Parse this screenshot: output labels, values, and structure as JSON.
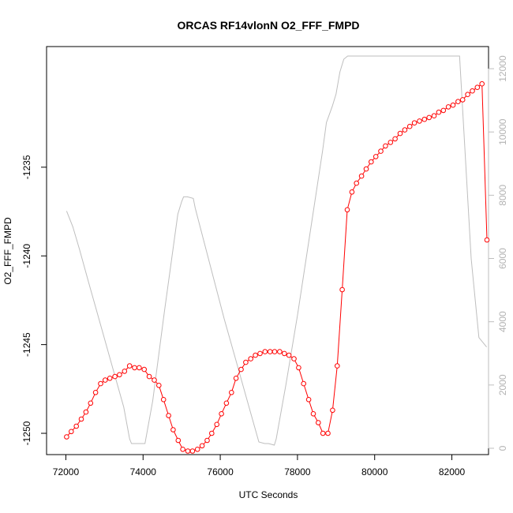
{
  "chart_data": {
    "type": "line",
    "title": "ORCAS RF14vlonN O2_FFF_FMPD",
    "xlabel": "UTC Seconds",
    "ylabel": "O2_FFF_FMPD",
    "xlim": [
      71500,
      82950
    ],
    "ylim": [
      -1251.2,
      -1228.2
    ],
    "y2lim": [
      -200,
      12700
    ],
    "x_ticks": [
      72000,
      74000,
      76000,
      78000,
      80000,
      82000
    ],
    "y_ticks": [
      -1235,
      -1240,
      -1245,
      -1250
    ],
    "y2_ticks": [
      0,
      2000,
      4000,
      6000,
      8000,
      10000,
      12000
    ],
    "grid": false,
    "colors": {
      "primary": "#ff0000",
      "secondary": "#bebebe",
      "frame": "#000000"
    },
    "series": [
      {
        "axis": "left",
        "style": "line+points",
        "color": "#ff0000",
        "x": [
          72020,
          72140,
          72270,
          72400,
          72520,
          72640,
          72770,
          72900,
          73020,
          73140,
          73270,
          73390,
          73520,
          73650,
          73780,
          73900,
          74030,
          74160,
          74290,
          74410,
          74530,
          74660,
          74780,
          74910,
          75030,
          75160,
          75280,
          75410,
          75530,
          75660,
          75780,
          75910,
          76030,
          76160,
          76290,
          76410,
          76540,
          76660,
          76790,
          76910,
          77030,
          77160,
          77290,
          77410,
          77540,
          77660,
          77780,
          77910,
          78030,
          78160,
          78290,
          78410,
          78540,
          78660,
          78790,
          78910,
          79030,
          79160,
          79290,
          79410,
          79530,
          79660,
          79780,
          79910,
          80030,
          80160,
          80280,
          80410,
          80530,
          80660,
          80780,
          80910,
          81030,
          81160,
          81290,
          81410,
          81540,
          81660,
          81780,
          81910,
          82030,
          82160,
          82280,
          82410,
          82530,
          82660,
          82780,
          82910
        ],
        "values": [
          -1250.2,
          -1249.9,
          -1249.6,
          -1249.2,
          -1248.8,
          -1248.3,
          -1247.7,
          -1247.2,
          -1247.0,
          -1246.9,
          -1246.8,
          -1246.7,
          -1246.5,
          -1246.2,
          -1246.3,
          -1246.3,
          -1246.4,
          -1246.8,
          -1247.0,
          -1247.3,
          -1248.1,
          -1249.0,
          -1249.8,
          -1250.4,
          -1250.9,
          -1251.0,
          -1251.0,
          -1250.9,
          -1250.7,
          -1250.4,
          -1250.0,
          -1249.5,
          -1248.9,
          -1248.3,
          -1247.7,
          -1246.9,
          -1246.4,
          -1246.0,
          -1245.8,
          -1245.6,
          -1245.5,
          -1245.4,
          -1245.4,
          -1245.4,
          -1245.4,
          -1245.5,
          -1245.6,
          -1245.8,
          -1246.3,
          -1247.2,
          -1248.1,
          -1248.9,
          -1249.4,
          -1250.0,
          -1250.0,
          -1248.7,
          -1246.2,
          -1241.9,
          -1237.4,
          -1236.4,
          -1235.9,
          -1235.5,
          -1235.1,
          -1234.7,
          -1234.4,
          -1234.1,
          -1233.8,
          -1233.6,
          -1233.4,
          -1233.1,
          -1232.9,
          -1232.7,
          -1232.5,
          -1232.4,
          -1232.3,
          -1232.2,
          -1232.1,
          -1231.9,
          -1231.8,
          -1231.6,
          -1231.5,
          -1231.3,
          -1231.2,
          -1230.9,
          -1230.7,
          -1230.5,
          -1230.3,
          -1239.1
        ]
      },
      {
        "axis": "right",
        "style": "line",
        "color": "#bebebe",
        "x": [
          72020,
          72180,
          72350,
          72600,
          72900,
          73200,
          73500,
          73650,
          73700,
          73780,
          73950,
          74050,
          74250,
          74550,
          74900,
          75000,
          75050,
          75150,
          75300,
          75350,
          75500,
          75800,
          76100,
          76400,
          76700,
          77000,
          77150,
          77250,
          77400,
          77450,
          77700,
          78000,
          78300,
          78500,
          78650,
          78750,
          78900,
          79000,
          79100,
          79200,
          79300,
          79500,
          80000,
          81000,
          82000,
          82200,
          82500,
          82700,
          82900
        ],
        "values": [
          7500,
          7000,
          6300,
          5200,
          3900,
          2600,
          1300,
          300,
          150,
          150,
          150,
          150,
          1500,
          4300,
          7400,
          7800,
          7950,
          7950,
          7900,
          7600,
          6900,
          5500,
          4100,
          2800,
          1500,
          200,
          150,
          150,
          100,
          300,
          2000,
          4200,
          6600,
          8200,
          9400,
          10300,
          10800,
          11200,
          11900,
          12300,
          12400,
          12400,
          12400,
          12400,
          12400,
          12400,
          6000,
          3500,
          3200
        ]
      }
    ]
  }
}
